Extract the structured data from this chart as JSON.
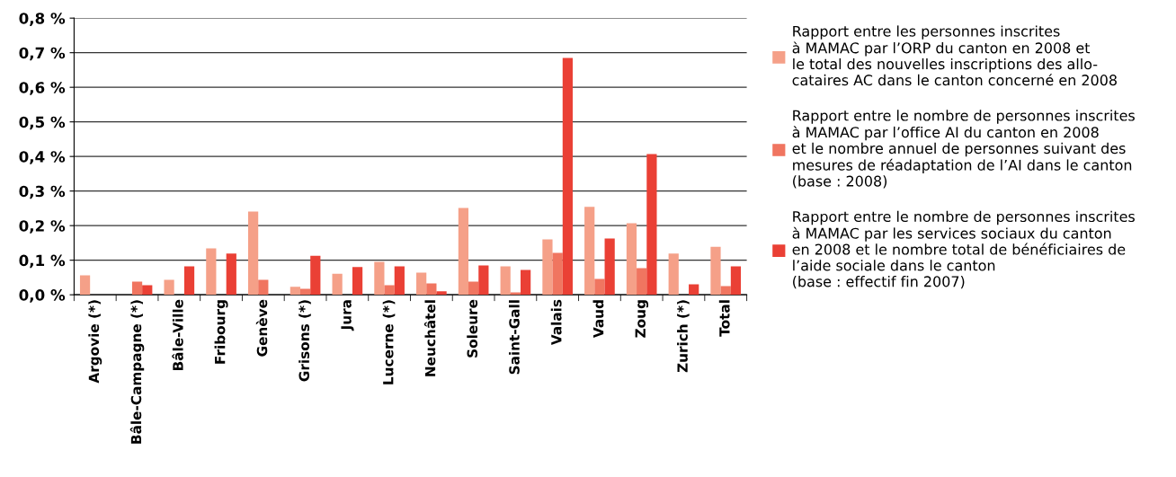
{
  "chart_data": {
    "type": "bar",
    "categories": [
      "Argovie (*)",
      "Bâle-Campagne (*)",
      "Bâle-Ville",
      "Fribourg",
      "Genève",
      "Grisons (*)",
      "Jura",
      "Lucerne (*)",
      "Neuchâtel",
      "Soleure",
      "Saint-Gall",
      "Valais",
      "Vaud",
      "Zoug",
      "Zurich (*)",
      "Total"
    ],
    "series": [
      {
        "name": "Rapport entre les personnes inscrites\nà MAMAC par l’ORP du canton en 2008 et\nle total des nouvelles inscriptions des allo-\ncataires AC dans le canton concerné en 2008",
        "color": "#f5a088",
        "values": [
          0.056,
          null,
          0.043,
          0.134,
          0.241,
          0.023,
          0.061,
          0.095,
          0.064,
          0.251,
          0.082,
          0.16,
          0.254,
          0.207,
          0.119,
          0.139
        ]
      },
      {
        "name": "Rapport entre le nombre de personnes inscrites\nà MAMAC par l’office AI du canton en 2008\net le nombre annuel de personnes suivant des\nmesures de réadaptation de l’AI dans le canton\n(base : 2008)",
        "color": "#f07560",
        "values": [
          null,
          0.038,
          null,
          null,
          0.043,
          0.017,
          null,
          0.028,
          0.033,
          0.038,
          0.007,
          0.121,
          0.046,
          0.077,
          null,
          0.025
        ]
      },
      {
        "name": "Rapport entre le nombre de personnes inscrites\nà MAMAC par les services sociaux du canton\nen 2008 et le nombre total de bénéficiaires de\nl’aide sociale dans le canton\n(base : effectif fin 2007)",
        "color": "#ea4035",
        "values": [
          null,
          0.028,
          0.082,
          0.119,
          null,
          0.113,
          0.08,
          0.082,
          0.01,
          0.085,
          0.072,
          0.685,
          0.163,
          0.407,
          0.03,
          0.082
        ]
      }
    ],
    "ylim": [
      0,
      0.8
    ],
    "yticks": [
      {
        "value": 0,
        "label": "0,0 %"
      },
      {
        "value": 0.1,
        "label": "0,1 %"
      },
      {
        "value": 0.2,
        "label": "0,2 %"
      },
      {
        "value": 0.3,
        "label": "0,3 %"
      },
      {
        "value": 0.4,
        "label": "0,4 %"
      },
      {
        "value": 0.5,
        "label": "0,5 %"
      },
      {
        "value": 0.6,
        "label": "0,6 %"
      },
      {
        "value": 0.7,
        "label": "0,7 %"
      },
      {
        "value": 0.8,
        "label": "0,8 %"
      }
    ],
    "grid": "y",
    "legend": "right"
  }
}
